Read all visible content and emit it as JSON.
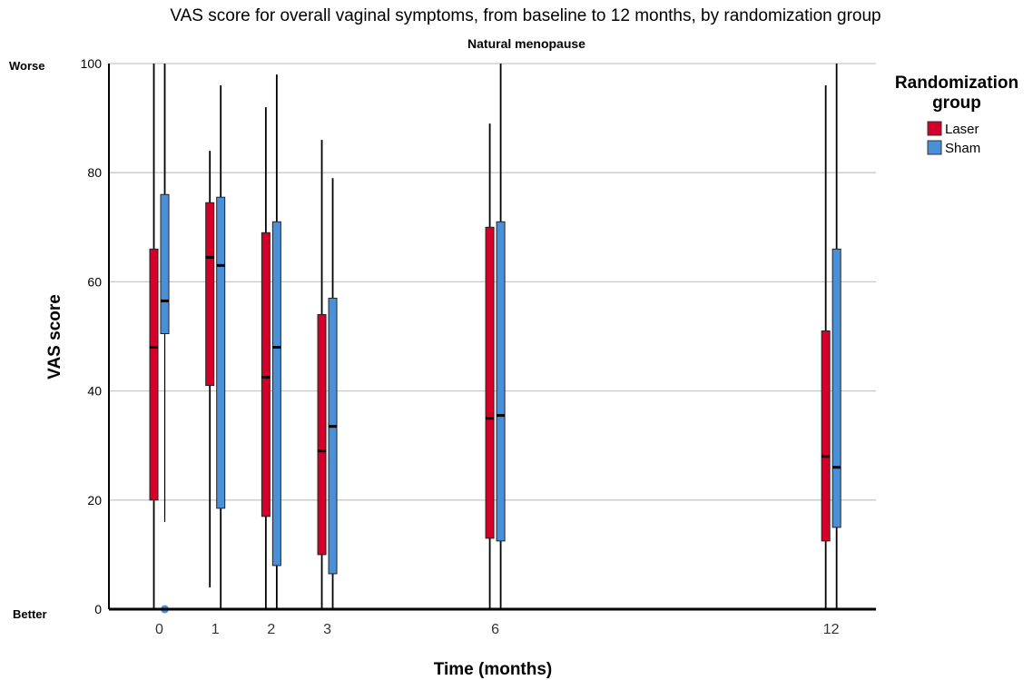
{
  "chart_data": {
    "type": "boxplot",
    "title": "VAS score for overall vaginal symptoms, from baseline to 12 months, by randomization group",
    "subtitle": "Natural menopause",
    "xlabel": "Time (months)",
    "ylabel": "VAS score",
    "ylim": [
      0,
      100
    ],
    "yticks": [
      0,
      20,
      40,
      60,
      80,
      100
    ],
    "y_top_label": "Worse",
    "y_bottom_label": "Better",
    "x": [
      0,
      1,
      2,
      3,
      6,
      12
    ],
    "xlim": [
      -0.9,
      12.8
    ],
    "grid": true,
    "legend": {
      "title_line1": "Randomization",
      "title_line2": "group",
      "placement": "right"
    },
    "series": [
      {
        "name": "Laser",
        "color": "#d4002a",
        "boxes": [
          {
            "x": 0,
            "min": 0,
            "q1": 20,
            "median": 48,
            "q3": 66,
            "max": 100
          },
          {
            "x": 1,
            "min": 4,
            "q1": 41,
            "median": 64.5,
            "q3": 74.5,
            "max": 84
          },
          {
            "x": 2,
            "min": 0,
            "q1": 17,
            "median": 42.5,
            "q3": 69,
            "max": 92
          },
          {
            "x": 3,
            "min": 0,
            "q1": 10,
            "median": 29,
            "q3": 54,
            "max": 86
          },
          {
            "x": 6,
            "min": 0,
            "q1": 13,
            "median": 35,
            "q3": 70,
            "max": 89
          },
          {
            "x": 12,
            "min": 0,
            "q1": 12.5,
            "median": 28,
            "q3": 51,
            "max": 96
          }
        ]
      },
      {
        "name": "Sham",
        "color": "#4a90d9",
        "boxes": [
          {
            "x": 0,
            "min": 16,
            "q1": 50.5,
            "median": 56.5,
            "q3": 76,
            "max": 100,
            "outliers": [
              0
            ]
          },
          {
            "x": 1,
            "min": 0,
            "q1": 18.5,
            "median": 63,
            "q3": 75.5,
            "max": 96
          },
          {
            "x": 2,
            "min": 0,
            "q1": 8,
            "median": 48,
            "q3": 71,
            "max": 98
          },
          {
            "x": 3,
            "min": 0,
            "q1": 6.5,
            "median": 33.5,
            "q3": 57,
            "max": 79
          },
          {
            "x": 6,
            "min": 0,
            "q1": 12.5,
            "median": 35.5,
            "q3": 71,
            "max": 100
          },
          {
            "x": 12,
            "min": 0,
            "q1": 15,
            "median": 26,
            "q3": 66,
            "max": 100
          }
        ]
      }
    ]
  }
}
